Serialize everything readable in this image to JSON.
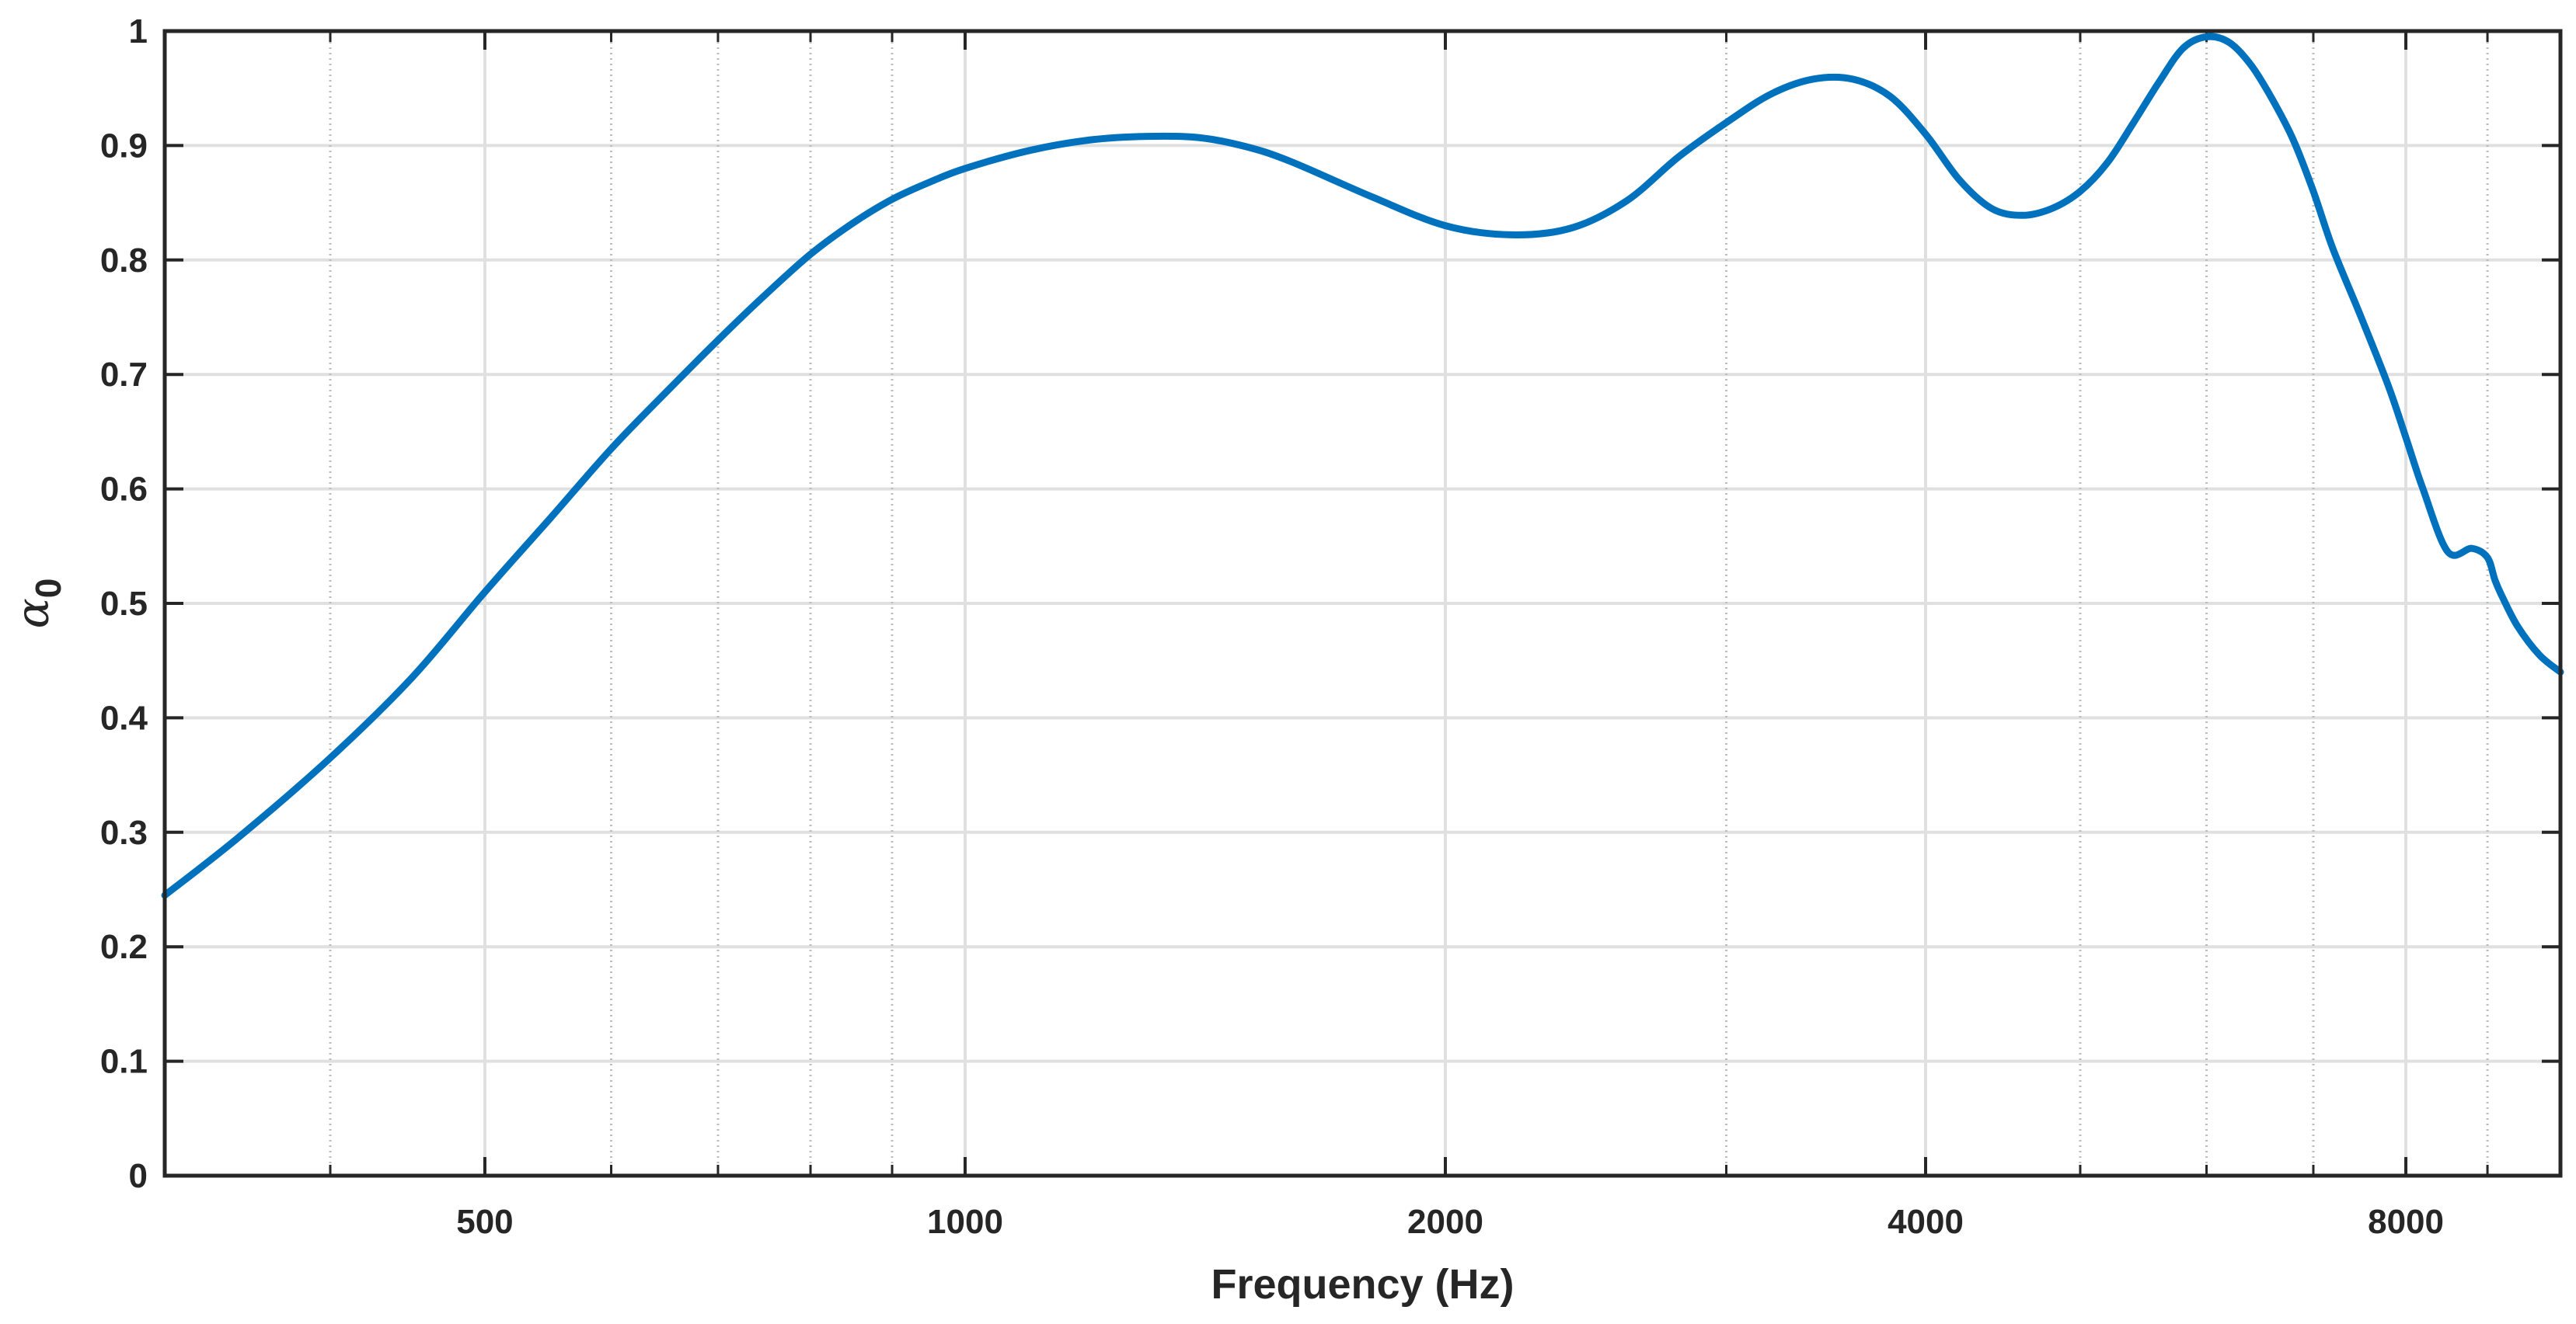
{
  "chart_data": {
    "type": "line",
    "xscale": "log",
    "xlabel": "Frequency (Hz)",
    "ylabel": "α",
    "ylabel_subscript": "0",
    "xlim": [
      315,
      10000
    ],
    "ylim": [
      0,
      1
    ],
    "grid": true,
    "x_major_ticks": [
      500,
      1000,
      2000,
      4000,
      8000
    ],
    "x_major_tick_labels": [
      "500",
      "1000",
      "2000",
      "4000",
      "8000"
    ],
    "x_minor_grid": [
      400,
      600,
      700,
      800,
      900,
      3000,
      5000,
      6000,
      7000,
      9000
    ],
    "y_ticks": [
      0,
      0.1,
      0.2,
      0.3,
      0.4,
      0.5,
      0.6,
      0.7,
      0.8,
      0.9,
      1
    ],
    "y_tick_labels": [
      "0",
      "0.1",
      "0.2",
      "0.3",
      "0.4",
      "0.5",
      "0.6",
      "0.7",
      "0.8",
      "0.9",
      "1"
    ],
    "line_color": "#0072BD",
    "series": [
      {
        "x": [
          315,
          350,
          400,
          450,
          500,
          550,
          600,
          650,
          700,
          750,
          800,
          850,
          900,
          950,
          1000,
          1100,
          1200,
          1300,
          1400,
          1500,
          1600,
          1800,
          2000,
          2200,
          2400,
          2600,
          2800,
          3000,
          3200,
          3400,
          3600,
          3800,
          4000,
          4200,
          4400,
          4600,
          4800,
          5000,
          5200,
          5400,
          5600,
          5800,
          6000,
          6200,
          6400,
          6600,
          6800,
          7000,
          7200,
          7500,
          7800,
          8000,
          8200,
          8500,
          8800,
          9000,
          9100,
          9200,
          9400,
          9700,
          10000
        ],
        "y": [
          0.245,
          0.295,
          0.365,
          0.435,
          0.51,
          0.575,
          0.635,
          0.685,
          0.73,
          0.77,
          0.805,
          0.832,
          0.853,
          0.868,
          0.88,
          0.896,
          0.905,
          0.908,
          0.907,
          0.899,
          0.886,
          0.855,
          0.83,
          0.822,
          0.828,
          0.852,
          0.89,
          0.92,
          0.945,
          0.958,
          0.958,
          0.943,
          0.91,
          0.87,
          0.845,
          0.839,
          0.845,
          0.86,
          0.885,
          0.92,
          0.955,
          0.985,
          0.995,
          0.99,
          0.97,
          0.94,
          0.905,
          0.86,
          0.81,
          0.75,
          0.69,
          0.645,
          0.6,
          0.545,
          0.548,
          0.54,
          0.52,
          0.505,
          0.48,
          0.455,
          0.44
        ]
      }
    ]
  }
}
